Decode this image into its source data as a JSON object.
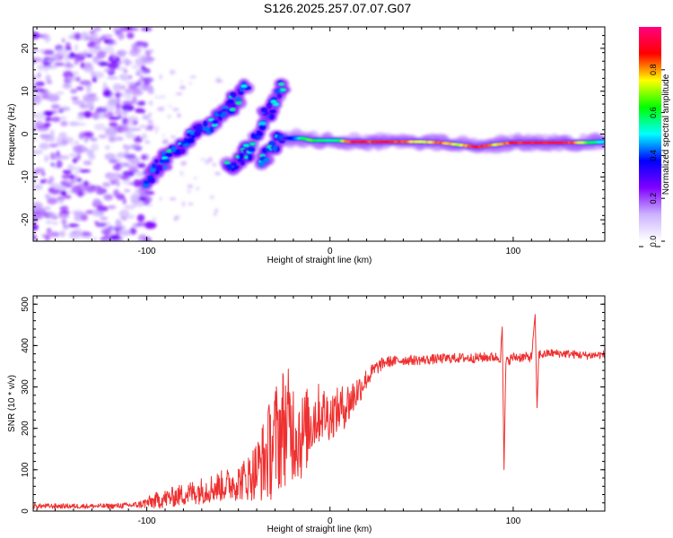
{
  "title": "S126.2025.257.07.07.G07",
  "chart_data": [
    {
      "type": "heatmap",
      "xlabel": "Height of straight line (km)",
      "ylabel": "Frequency (Hz)",
      "xlim": [
        -162,
        150
      ],
      "ylim": [
        -25,
        25
      ],
      "xticks": [
        -100,
        0,
        100
      ],
      "yticks": [
        -20,
        -10,
        0,
        10,
        20
      ],
      "grid": false,
      "colorbar": {
        "label": "Normalized spectral amplitude",
        "range": [
          0,
          1
        ],
        "ticks": [
          "0.0",
          "0.2",
          "0.4",
          "0.6",
          "0.8"
        ],
        "tick_values": [
          0.0,
          0.2,
          0.4,
          0.6,
          0.8
        ],
        "colors": [
          "#ffffff",
          "#ccb3ff",
          "#8000ff",
          "#0000ff",
          "#00ffff",
          "#00ff00",
          "#ffff00",
          "#ff0000",
          "#ff0080"
        ]
      },
      "features": [
        {
          "name": "noise region",
          "x_range": [
            -162,
            -100
          ],
          "y_range": [
            -25,
            25
          ],
          "amplitude": 0.1
        },
        {
          "name": "band A",
          "points": [
            [
              -100,
              -12
            ],
            [
              -95,
              -8
            ],
            [
              -90,
              -6
            ],
            [
              -85,
              -4
            ],
            [
              -80,
              -2
            ],
            [
              -75,
              0
            ],
            [
              -70,
              1
            ],
            [
              -65,
              2
            ],
            [
              -60,
              4
            ],
            [
              -55,
              6
            ],
            [
              -50,
              9
            ],
            [
              -45,
              12
            ]
          ],
          "amplitude": 0.3
        },
        {
          "name": "band B",
          "points": [
            [
              -55,
              -8
            ],
            [
              -50,
              -6
            ],
            [
              -45,
              -4
            ],
            [
              -40,
              0
            ],
            [
              -35,
              4
            ],
            [
              -30,
              8
            ],
            [
              -25,
              13
            ]
          ],
          "amplitude": 0.3
        },
        {
          "name": "band C",
          "points": [
            [
              -37,
              -7
            ],
            [
              -33,
              -4
            ],
            [
              -29,
              -2
            ],
            [
              -25,
              0
            ]
          ],
          "amplitude": 0.3
        },
        {
          "name": "main line",
          "x": [
            -25,
            -20,
            -15,
            -10,
            -5,
            0,
            5,
            10,
            15,
            20,
            30,
            40,
            50,
            60,
            70,
            80,
            90,
            100,
            110,
            120,
            130,
            140,
            150
          ],
          "y": [
            -1,
            -1,
            -1,
            -1.5,
            -1.5,
            -1.5,
            -1.5,
            -1.8,
            -1.8,
            -1.8,
            -1.8,
            -1.8,
            -1.8,
            -2,
            -2.5,
            -3,
            -2.5,
            -2,
            -2,
            -2,
            -2,
            -2,
            -1.8
          ],
          "amplitude": [
            0.3,
            0.4,
            0.6,
            0.7,
            0.6,
            0.6,
            0.6,
            0.9,
            0.95,
            0.9,
            0.95,
            0.9,
            0.75,
            0.9,
            0.75,
            0.95,
            0.8,
            0.9,
            0.95,
            0.9,
            0.95,
            0.7,
            0.5
          ]
        }
      ]
    },
    {
      "type": "line",
      "xlabel": "Height of straight line (km)",
      "ylabel": "SNR (10 * v/v)",
      "xlim": [
        -162,
        150
      ],
      "ylim": [
        0,
        520
      ],
      "xticks": [
        -100,
        0,
        100
      ],
      "yticks": [
        0,
        100,
        200,
        300,
        400,
        500
      ],
      "grid": false,
      "color": "#ef3030",
      "series": [
        {
          "name": "SNR",
          "x": [
            -162,
            -140,
            -120,
            -105,
            -95,
            -85,
            -75,
            -65,
            -55,
            -50,
            -45,
            -40,
            -35,
            -30,
            -25,
            -20,
            -15,
            -10,
            -5,
            0,
            5,
            10,
            15,
            20,
            25,
            30,
            40,
            50,
            60,
            70,
            80,
            85,
            90,
            93,
            94,
            95,
            96,
            100,
            105,
            110,
            112,
            113,
            114,
            116,
            120,
            130,
            140,
            150
          ],
          "y": [
            12,
            12,
            12,
            15,
            25,
            35,
            45,
            55,
            65,
            70,
            80,
            100,
            130,
            170,
            210,
            200,
            180,
            220,
            240,
            230,
            245,
            260,
            290,
            320,
            345,
            360,
            365,
            365,
            368,
            370,
            370,
            372,
            372,
            370,
            445,
            100,
            360,
            372,
            372,
            372,
            475,
            250,
            380,
            378,
            382,
            380,
            376,
            378
          ],
          "noise_amplitude": [
            6,
            6,
            6,
            8,
            20,
            25,
            30,
            35,
            40,
            45,
            55,
            75,
            110,
            140,
            150,
            130,
            110,
            90,
            70,
            60,
            55,
            55,
            40,
            25,
            18,
            14,
            12,
            12,
            12,
            12,
            12,
            12,
            12,
            12,
            0,
            0,
            12,
            12,
            12,
            12,
            0,
            0,
            12,
            10,
            10,
            10,
            10,
            10
          ]
        }
      ]
    }
  ]
}
